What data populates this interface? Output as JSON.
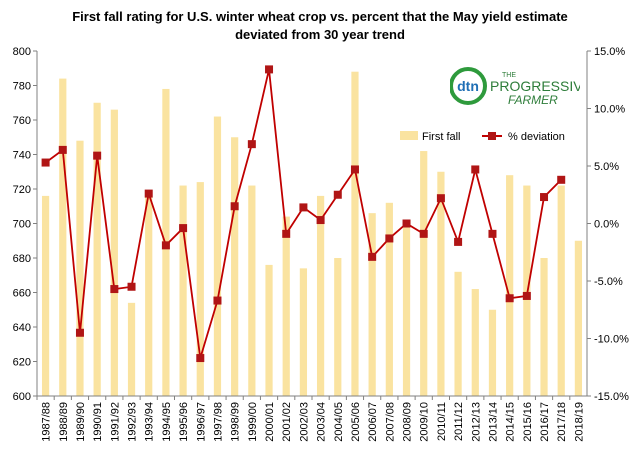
{
  "chart_data": {
    "type": "bar+line",
    "title": "First fall rating for U.S. winter wheat crop vs. percent that the May yield estimate",
    "subtitle": "deviated from 30 year trend",
    "categories": [
      "1987/88",
      "1988/89",
      "1989/90",
      "1990/91",
      "1991/92",
      "1992/93",
      "1993/94",
      "1994/95",
      "1995/96",
      "1996/97",
      "1997/98",
      "1998/99",
      "1999/00",
      "2000/01",
      "2001/02",
      "2002/03",
      "2003/04",
      "2004/05",
      "2005/06",
      "2006/07",
      "2007/08",
      "2008/09",
      "2009/10",
      "2010/11",
      "2011/12",
      "2012/13",
      "2013/14",
      "2014/15",
      "2015/16",
      "2016/17",
      "2017/18",
      "2018/19"
    ],
    "series": [
      {
        "name": "First fall",
        "type": "bar",
        "axis": "left",
        "color": "#fae3a0",
        "values": [
          716,
          784,
          748,
          770,
          766,
          654,
          716,
          778,
          722,
          724,
          762,
          750,
          722,
          676,
          704,
          674,
          716,
          680,
          788,
          706,
          712,
          702,
          742,
          730,
          672,
          662,
          650,
          728,
          722,
          680,
          722,
          690
        ]
      },
      {
        "name": "% deviation",
        "type": "line",
        "axis": "right",
        "color": "#c00000",
        "values": [
          5.3,
          6.4,
          -9.5,
          5.9,
          -5.7,
          -5.5,
          2.6,
          -1.9,
          -0.4,
          -11.7,
          -6.7,
          1.5,
          6.9,
          13.4,
          -0.9,
          1.4,
          0.3,
          2.5,
          4.7,
          -2.9,
          -1.3,
          0.0,
          -0.9,
          2.2,
          -1.6,
          4.7,
          -0.9,
          -6.5,
          -6.3,
          2.3,
          3.8,
          null
        ]
      }
    ],
    "left_axis": {
      "min": 600,
      "max": 800,
      "step": 20,
      "ticks": [
        "600",
        "620",
        "640",
        "660",
        "680",
        "700",
        "720",
        "740",
        "760",
        "780",
        "800"
      ]
    },
    "right_axis": {
      "min": -15,
      "max": 15,
      "step": 5,
      "ticks": [
        "-15.0%",
        "-10.0%",
        "-5.0%",
        "0.0%",
        "5.0%",
        "10.0%",
        "15.0%"
      ]
    },
    "legend": {
      "placement": "top-right",
      "entries": [
        "First fall",
        "% deviation"
      ]
    },
    "grid": false
  },
  "logo": {
    "badge_text": "dtn",
    "line1": "THE",
    "line2": "PROGRESSIVE",
    "line3": "FARMER"
  },
  "colors": {
    "bar": "#fae3a0",
    "line": "#c00000",
    "marker": "#b01515",
    "axis": "#808080"
  }
}
